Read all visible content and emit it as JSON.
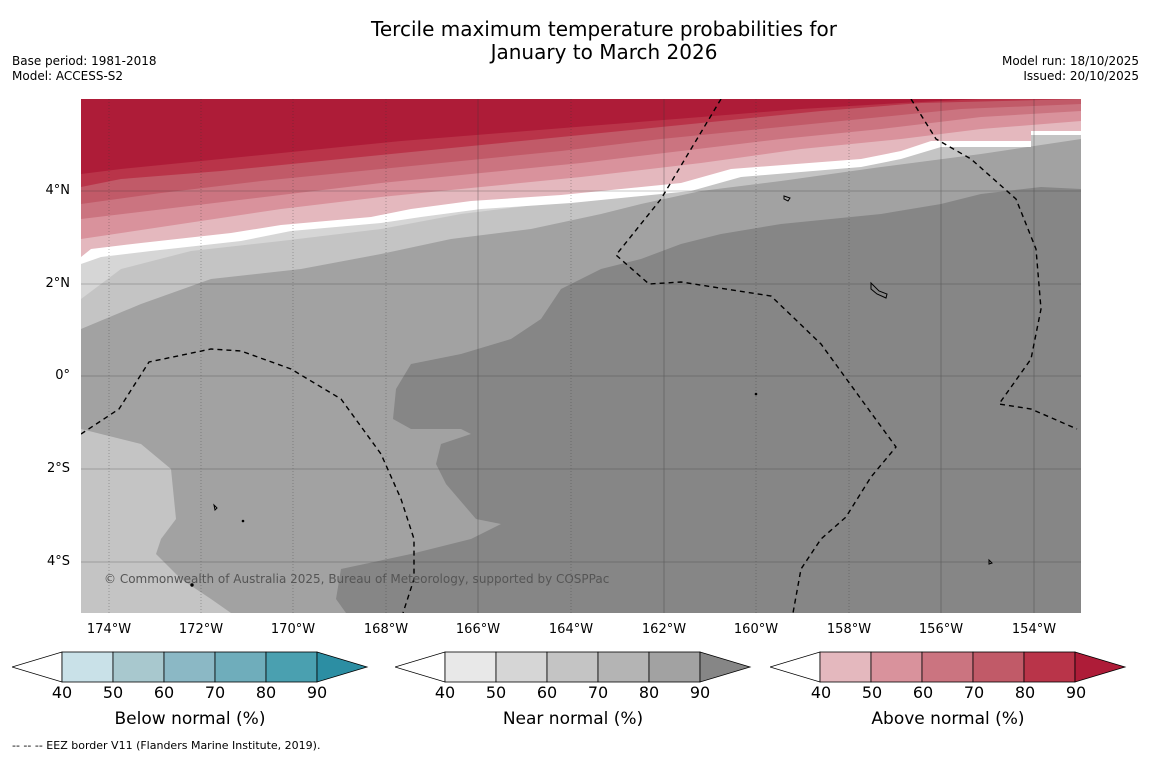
{
  "title": {
    "line1": "Tercile maximum temperature probabilities for",
    "line2": "January to March 2026"
  },
  "meta_left": {
    "base_period": "Base period: 1981-2018",
    "model": "Model: ACCESS-S2"
  },
  "meta_right": {
    "model_run": "Model run: 18/10/2025",
    "issued": "Issued: 20/10/2025"
  },
  "map": {
    "lat_labels": [
      "4°N",
      "2°N",
      "0°",
      "2°S",
      "4°S"
    ],
    "lon_labels": [
      "174°W",
      "172°W",
      "170°W",
      "168°W",
      "166°W",
      "164°W",
      "162°W",
      "160°W",
      "158°W",
      "156°W",
      "154°W"
    ],
    "copyright": "© Commonwealth of Australia 2025, Bureau of Meteorology, supported by COSPPac"
  },
  "colorbars": [
    {
      "label": "Below normal (%)",
      "ticks": [
        "40",
        "50",
        "60",
        "70",
        "80",
        "90"
      ],
      "colors": [
        "#ffffff",
        "#c9e1e8",
        "#a8c8ce",
        "#8bb8c5",
        "#6fadbb",
        "#4aa0b0",
        "#2c8ea3"
      ]
    },
    {
      "label": "Near normal (%)",
      "ticks": [
        "40",
        "50",
        "60",
        "70",
        "80",
        "90"
      ],
      "colors": [
        "#ffffff",
        "#e8e8e8",
        "#d6d6d6",
        "#c4c4c4",
        "#b4b4b4",
        "#a2a2a2",
        "#868686"
      ]
    },
    {
      "label": "Above normal (%)",
      "ticks": [
        "40",
        "50",
        "60",
        "70",
        "80",
        "90"
      ],
      "colors": [
        "#ffffff",
        "#e4b8be",
        "#d9929c",
        "#cb7480",
        "#c15a68",
        "#b93449",
        "#ae1c38"
      ]
    }
  ],
  "footnote": "--  --  -- EEZ border V11 (Flanders Marine Institute, 2019)."
}
